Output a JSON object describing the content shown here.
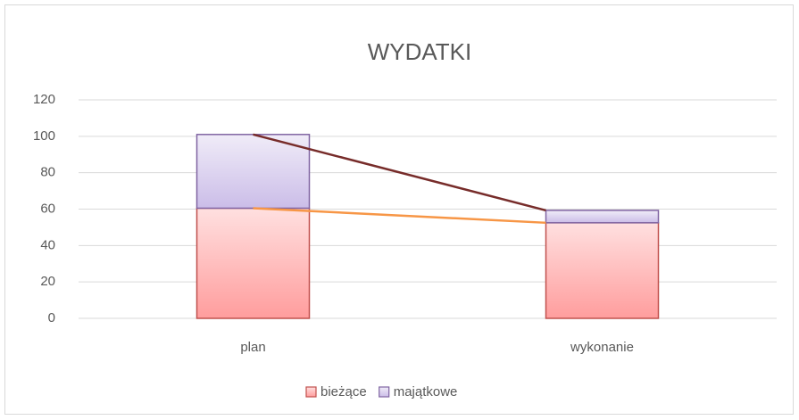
{
  "chart_data": {
    "type": "stacked_bar",
    "title": "WYDATKI",
    "categories": [
      "plan",
      "wykonanie"
    ],
    "series": [
      {
        "name": "bieżące",
        "color": "#c0504d",
        "line_color": "#f79646",
        "values": [
          60.5,
          52.5
        ]
      },
      {
        "name": "majątkowe",
        "color": "#8064a2",
        "line_color": "#772c2a",
        "values": [
          40.5,
          6.8
        ]
      }
    ],
    "ylim": [
      0,
      120
    ],
    "yticks": [
      0,
      20,
      40,
      60,
      80,
      100,
      120
    ],
    "grid": true,
    "legend": "bottom"
  }
}
